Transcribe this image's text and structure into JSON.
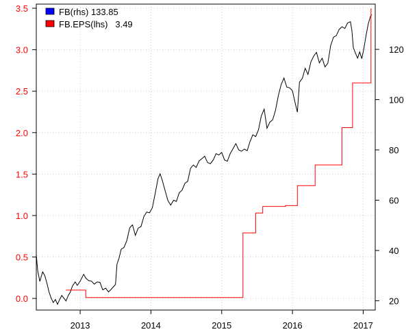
{
  "chart_data": {
    "type": "line",
    "title": "",
    "xlabel": "",
    "ylabel_left": "",
    "ylabel_right": "",
    "grid": true,
    "legend_position": "top-left",
    "x_ticks": [
      "2013",
      "2014",
      "2015",
      "2016",
      "2017"
    ],
    "x_tick_years": [
      2013,
      2014,
      2015,
      2016,
      2017
    ],
    "xlim": [
      2012.38,
      2017.17
    ],
    "y_left": {
      "lim": [
        -0.14,
        3.55
      ],
      "ticks": [
        "0.0",
        "0.5",
        "1.0",
        "1.5",
        "2.0",
        "2.5",
        "3.0",
        "3.5"
      ],
      "tick_values": [
        0.0,
        0.5,
        1.0,
        1.5,
        2.0,
        2.5,
        3.0,
        3.5
      ],
      "color": "#ff0000"
    },
    "y_right": {
      "lim": [
        16.3,
        138.0
      ],
      "ticks": [
        "20",
        "40",
        "60",
        "80",
        "100",
        "120"
      ],
      "tick_values": [
        20,
        40,
        60,
        80,
        100,
        120
      ],
      "color": "#000000"
    },
    "legend": [
      {
        "name": "FB(rhs) 133.85",
        "swatch_color": "#0000ff"
      },
      {
        "name": "FB.EPS(lhs)   3.49",
        "swatch_color": "#ff0000"
      }
    ],
    "series": [
      {
        "name": "FB",
        "axis": "right",
        "color": "#000000",
        "points": [
          [
            2012.38,
            38.2
          ],
          [
            2012.4,
            31.9
          ],
          [
            2012.43,
            27.7
          ],
          [
            2012.45,
            29.6
          ],
          [
            2012.47,
            31.5
          ],
          [
            2012.5,
            30.0
          ],
          [
            2012.53,
            27.0
          ],
          [
            2012.56,
            23.5
          ],
          [
            2012.59,
            21.0
          ],
          [
            2012.62,
            19.3
          ],
          [
            2012.65,
            20.5
          ],
          [
            2012.68,
            18.6
          ],
          [
            2012.71,
            20.5
          ],
          [
            2012.74,
            22.1
          ],
          [
            2012.77,
            21.0
          ],
          [
            2012.8,
            19.9
          ],
          [
            2012.83,
            22.0
          ],
          [
            2012.86,
            23.4
          ],
          [
            2012.89,
            25.8
          ],
          [
            2012.93,
            27.5
          ],
          [
            2012.96,
            26.1
          ],
          [
            2013.0,
            27.8
          ],
          [
            2013.05,
            30.5
          ],
          [
            2013.08,
            29.0
          ],
          [
            2013.12,
            28.0
          ],
          [
            2013.16,
            27.8
          ],
          [
            2013.2,
            26.6
          ],
          [
            2013.24,
            27.5
          ],
          [
            2013.28,
            27.3
          ],
          [
            2013.32,
            24.3
          ],
          [
            2013.36,
            25.0
          ],
          [
            2013.4,
            23.5
          ],
          [
            2013.44,
            24.6
          ],
          [
            2013.5,
            26.5
          ],
          [
            2013.52,
            34.5
          ],
          [
            2013.55,
            37.0
          ],
          [
            2013.58,
            40.5
          ],
          [
            2013.62,
            41.2
          ],
          [
            2013.66,
            44.0
          ],
          [
            2013.7,
            49.0
          ],
          [
            2013.74,
            50.2
          ],
          [
            2013.78,
            46.0
          ],
          [
            2013.82,
            48.9
          ],
          [
            2013.86,
            49.5
          ],
          [
            2013.9,
            53.5
          ],
          [
            2013.94,
            55.3
          ],
          [
            2013.98,
            55.0
          ],
          [
            2014.02,
            57.0
          ],
          [
            2014.06,
            62.6
          ],
          [
            2014.1,
            68.5
          ],
          [
            2014.13,
            70.5
          ],
          [
            2014.16,
            68.0
          ],
          [
            2014.2,
            63.8
          ],
          [
            2014.24,
            59.9
          ],
          [
            2014.28,
            58.0
          ],
          [
            2014.32,
            60.0
          ],
          [
            2014.36,
            59.5
          ],
          [
            2014.4,
            62.9
          ],
          [
            2014.44,
            64.0
          ],
          [
            2014.48,
            66.7
          ],
          [
            2014.52,
            67.5
          ],
          [
            2014.56,
            72.7
          ],
          [
            2014.6,
            74.0
          ],
          [
            2014.64,
            73.0
          ],
          [
            2014.68,
            75.6
          ],
          [
            2014.72,
            76.5
          ],
          [
            2014.76,
            77.5
          ],
          [
            2014.8,
            75.0
          ],
          [
            2014.84,
            74.5
          ],
          [
            2014.88,
            76.0
          ],
          [
            2014.92,
            78.5
          ],
          [
            2014.96,
            78.0
          ],
          [
            2015.0,
            79.0
          ],
          [
            2015.04,
            76.0
          ],
          [
            2015.08,
            75.5
          ],
          [
            2015.12,
            78.5
          ],
          [
            2015.16,
            80.5
          ],
          [
            2015.2,
            82.5
          ],
          [
            2015.24,
            80.0
          ],
          [
            2015.28,
            79.5
          ],
          [
            2015.32,
            80.3
          ],
          [
            2015.36,
            79.7
          ],
          [
            2015.4,
            83.3
          ],
          [
            2015.44,
            86.0
          ],
          [
            2015.48,
            85.3
          ],
          [
            2015.52,
            88.0
          ],
          [
            2015.56,
            93.5
          ],
          [
            2015.6,
            96.2
          ],
          [
            2015.64,
            88.6
          ],
          [
            2015.68,
            91.0
          ],
          [
            2015.72,
            92.0
          ],
          [
            2015.76,
            95.7
          ],
          [
            2015.8,
            101.5
          ],
          [
            2015.84,
            106.0
          ],
          [
            2015.88,
            108.6
          ],
          [
            2015.92,
            105.0
          ],
          [
            2015.96,
            104.7
          ],
          [
            2016.0,
            103.5
          ],
          [
            2016.04,
            98.5
          ],
          [
            2016.07,
            95.0
          ],
          [
            2016.1,
            107.0
          ],
          [
            2016.14,
            108.5
          ],
          [
            2016.18,
            112.5
          ],
          [
            2016.22,
            110.0
          ],
          [
            2016.26,
            115.0
          ],
          [
            2016.3,
            117.3
          ],
          [
            2016.34,
            118.8
          ],
          [
            2016.38,
            114.6
          ],
          [
            2016.42,
            116.5
          ],
          [
            2016.46,
            113.0
          ],
          [
            2016.5,
            114.5
          ],
          [
            2016.54,
            121.5
          ],
          [
            2016.58,
            124.8
          ],
          [
            2016.62,
            125.5
          ],
          [
            2016.66,
            127.9
          ],
          [
            2016.7,
            129.0
          ],
          [
            2016.74,
            128.3
          ],
          [
            2016.78,
            130.5
          ],
          [
            2016.82,
            131.0
          ],
          [
            2016.84,
            127.5
          ],
          [
            2016.86,
            120.7
          ],
          [
            2016.89,
            118.5
          ],
          [
            2016.92,
            116.5
          ],
          [
            2016.95,
            119.0
          ],
          [
            2016.98,
            116.3
          ],
          [
            2017.01,
            120.5
          ],
          [
            2017.04,
            125.5
          ],
          [
            2017.07,
            130.0
          ],
          [
            2017.1,
            133.0
          ],
          [
            2017.12,
            133.85
          ]
        ]
      },
      {
        "name": "FB.EPS",
        "axis": "left",
        "color": "#ff0000",
        "step": true,
        "points": [
          [
            2012.8,
            0.1
          ],
          [
            2013.08,
            0.01
          ],
          [
            2015.3,
            0.79
          ],
          [
            2015.48,
            1.03
          ],
          [
            2015.58,
            1.11
          ],
          [
            2015.9,
            1.12
          ],
          [
            2016.07,
            1.36
          ],
          [
            2016.32,
            1.61
          ],
          [
            2016.7,
            2.06
          ],
          [
            2016.85,
            2.6
          ],
          [
            2017.11,
            3.49
          ],
          [
            2017.12,
            3.49
          ]
        ]
      }
    ]
  }
}
